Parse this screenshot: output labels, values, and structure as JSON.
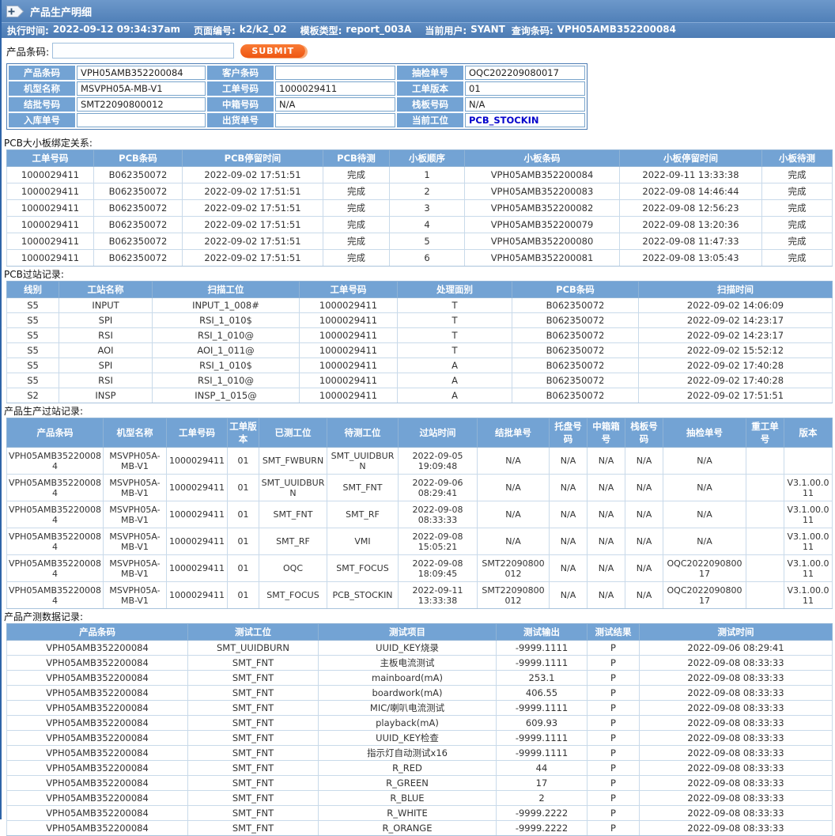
{
  "colors": {
    "accent_blue": "#5585BE",
    "header_blue": "#73A3D4",
    "button_orange": "#F4631E",
    "link_blue": "#0404CC"
  },
  "page": {
    "title": "产品生产明细",
    "meta": {
      "exec_time_label": "执行时间:",
      "exec_time": "2022-09-12 09:34:37am",
      "page_no_label": "页面编号:",
      "page_no": "k2/k2_02",
      "template_label": "模板类型:",
      "template": "report_003A",
      "user_label": "当前用户:",
      "user": "SYANT",
      "query_label": "查询条码:",
      "query": "VPH05AMB352200084"
    }
  },
  "form": {
    "barcode_label": "产品条码:",
    "barcode_value": "",
    "submit_label": "SUBMIT"
  },
  "info": {
    "rows": [
      [
        {
          "label": "产品条码",
          "value": "VPH05AMB352200084"
        },
        {
          "label": "客户条码",
          "value": ""
        },
        {
          "label": "抽检单号",
          "value": "OQC202209080017"
        }
      ],
      [
        {
          "label": "机型名称",
          "value": "MSVPH05A-MB-V1"
        },
        {
          "label": "工单号码",
          "value": "1000029411"
        },
        {
          "label": "工单版本",
          "value": "01"
        }
      ],
      [
        {
          "label": "结批号码",
          "value": "SMT22090800012"
        },
        {
          "label": "中箱号码",
          "value": "N/A"
        },
        {
          "label": "栈板号码",
          "value": "N/A"
        }
      ],
      [
        {
          "label": "入库单号",
          "value": ""
        },
        {
          "label": "出货单号",
          "value": ""
        },
        {
          "label": "当前工位",
          "value": "PCB_STOCKIN",
          "link": true
        }
      ]
    ]
  },
  "sections": {
    "binding": {
      "title": "PCB大小板绑定关系:",
      "headers": [
        "工单号码",
        "PCB条码",
        "PCB停留时间",
        "PCB待测",
        "小板顺序",
        "小板条码",
        "小板停留时间",
        "小板待测"
      ],
      "rows": [
        [
          "1000029411",
          "B062350072",
          "2022-09-02 17:51:51",
          "完成",
          "1",
          "VPH05AMB352200084",
          "2022-09-11 13:33:38",
          "完成"
        ],
        [
          "1000029411",
          "B062350072",
          "2022-09-02 17:51:51",
          "完成",
          "2",
          "VPH05AMB352200083",
          "2022-09-08 14:46:44",
          "完成"
        ],
        [
          "1000029411",
          "B062350072",
          "2022-09-02 17:51:51",
          "完成",
          "3",
          "VPH05AMB352200082",
          "2022-09-08 12:56:23",
          "完成"
        ],
        [
          "1000029411",
          "B062350072",
          "2022-09-02 17:51:51",
          "完成",
          "4",
          "VPH05AMB352200079",
          "2022-09-08 13:20:36",
          "完成"
        ],
        [
          "1000029411",
          "B062350072",
          "2022-09-02 17:51:51",
          "完成",
          "5",
          "VPH05AMB352200080",
          "2022-09-08 11:47:33",
          "完成"
        ],
        [
          "1000029411",
          "B062350072",
          "2022-09-02 17:51:51",
          "完成",
          "6",
          "VPH05AMB352200081",
          "2022-09-08 13:05:43",
          "完成"
        ]
      ]
    },
    "pcb_pass": {
      "title": "PCB过站记录:",
      "headers": [
        "线别",
        "工站名称",
        "扫描工位",
        "工单号码",
        "处理面别",
        "PCB条码",
        "扫描时间"
      ],
      "rows": [
        [
          "S5",
          "INPUT",
          "INPUT_1_008#",
          "1000029411",
          "T",
          "B062350072",
          "2022-09-02 14:06:09"
        ],
        [
          "S5",
          "SPI",
          "RSI_1_010$",
          "1000029411",
          "T",
          "B062350072",
          "2022-09-02 14:23:17"
        ],
        [
          "S5",
          "RSI",
          "RSI_1_010@",
          "1000029411",
          "T",
          "B062350072",
          "2022-09-02 14:23:17"
        ],
        [
          "S5",
          "AOI",
          "AOI_1_011@",
          "1000029411",
          "T",
          "B062350072",
          "2022-09-02 15:52:12"
        ],
        [
          "S5",
          "SPI",
          "RSI_1_010$",
          "1000029411",
          "A",
          "B062350072",
          "2022-09-02 17:40:28"
        ],
        [
          "S5",
          "RSI",
          "RSI_1_010@",
          "1000029411",
          "A",
          "B062350072",
          "2022-09-02 17:40:28"
        ],
        [
          "S2",
          "INSP",
          "INSP_1_015@",
          "1000029411",
          "A",
          "B062350072",
          "2022-09-02 17:51:51"
        ]
      ]
    },
    "production": {
      "title": "产品生产过站记录:",
      "headers": [
        "产品条码",
        "机型名称",
        "工单号码",
        "工单版本",
        "已测工位",
        "待测工位",
        "过站时间",
        "结批单号",
        "托盘号码",
        "中箱箱号",
        "栈板号码",
        "抽检单号",
        "重工单号",
        "版本"
      ],
      "rows": [
        [
          "VPH05AMB352200084",
          "MSVPH05A-MB-V1",
          "1000029411",
          "01",
          "SMT_FWBURN",
          "SMT_UUIDBURN",
          "2022-09-05 19:09:48",
          "N/A",
          "N/A",
          "N/A",
          "N/A",
          "N/A",
          "",
          ""
        ],
        [
          "VPH05AMB352200084",
          "MSVPH05A-MB-V1",
          "1000029411",
          "01",
          "SMT_UUIDBURN",
          "SMT_FNT",
          "2022-09-06 08:29:41",
          "N/A",
          "N/A",
          "N/A",
          "N/A",
          "N/A",
          "",
          "V3.1.00.011"
        ],
        [
          "VPH05AMB352200084",
          "MSVPH05A-MB-V1",
          "1000029411",
          "01",
          "SMT_FNT",
          "SMT_RF",
          "2022-09-08 08:33:33",
          "N/A",
          "N/A",
          "N/A",
          "N/A",
          "N/A",
          "",
          "V3.1.00.011"
        ],
        [
          "VPH05AMB352200084",
          "MSVPH05A-MB-V1",
          "1000029411",
          "01",
          "SMT_RF",
          "VMI",
          "2022-09-08 15:05:21",
          "N/A",
          "N/A",
          "N/A",
          "N/A",
          "N/A",
          "",
          "V3.1.00.011"
        ],
        [
          "VPH05AMB352200084",
          "MSVPH05A-MB-V1",
          "1000029411",
          "01",
          "OQC",
          "SMT_FOCUS",
          "2022-09-08 18:09:45",
          "SMT22090800012",
          "N/A",
          "N/A",
          "N/A",
          "OQC202209080017",
          "",
          "V3.1.00.011"
        ],
        [
          "VPH05AMB352200084",
          "MSVPH05A-MB-V1",
          "1000029411",
          "01",
          "SMT_FOCUS",
          "PCB_STOCKIN",
          "2022-09-11 13:33:38",
          "SMT22090800012",
          "N/A",
          "N/A",
          "N/A",
          "OQC202209080017",
          "",
          "V3.1.00.011"
        ]
      ]
    },
    "test": {
      "title": "产品产测数据记录:",
      "headers": [
        "产品条码",
        "测试工位",
        "测试项目",
        "测试输出",
        "测试结果",
        "测试时间"
      ],
      "rows": [
        [
          "VPH05AMB352200084",
          "SMT_UUIDBURN",
          "UUID_KEY烧录",
          "-9999.1111",
          "P",
          "2022-09-06 08:29:41"
        ],
        [
          "VPH05AMB352200084",
          "SMT_FNT",
          "主板电流测试",
          "-9999.1111",
          "P",
          "2022-09-08 08:33:33"
        ],
        [
          "VPH05AMB352200084",
          "SMT_FNT",
          "mainboard(mA)",
          "253.1",
          "P",
          "2022-09-08 08:33:33"
        ],
        [
          "VPH05AMB352200084",
          "SMT_FNT",
          "boardwork(mA)",
          "406.55",
          "P",
          "2022-09-08 08:33:33"
        ],
        [
          "VPH05AMB352200084",
          "SMT_FNT",
          "MIC/喇叭电流测试",
          "-9999.1111",
          "P",
          "2022-09-08 08:33:33"
        ],
        [
          "VPH05AMB352200084",
          "SMT_FNT",
          "playback(mA)",
          "609.93",
          "P",
          "2022-09-08 08:33:33"
        ],
        [
          "VPH05AMB352200084",
          "SMT_FNT",
          "UUID_KEY检查",
          "-9999.1111",
          "P",
          "2022-09-08 08:33:33"
        ],
        [
          "VPH05AMB352200084",
          "SMT_FNT",
          "指示灯自动测试x16",
          "-9999.1111",
          "P",
          "2022-09-08 08:33:33"
        ],
        [
          "VPH05AMB352200084",
          "SMT_FNT",
          "R_RED",
          "44",
          "P",
          "2022-09-08 08:33:33"
        ],
        [
          "VPH05AMB352200084",
          "SMT_FNT",
          "R_GREEN",
          "17",
          "P",
          "2022-09-08 08:33:33"
        ],
        [
          "VPH05AMB352200084",
          "SMT_FNT",
          "R_BLUE",
          "2",
          "P",
          "2022-09-08 08:33:33"
        ],
        [
          "VPH05AMB352200084",
          "SMT_FNT",
          "R_WHITE",
          "-9999.2222",
          "P",
          "2022-09-08 08:33:33"
        ],
        [
          "VPH05AMB352200084",
          "SMT_FNT",
          "R_ORANGE",
          "-9999.2222",
          "P",
          "2022-09-08 08:33:33"
        ]
      ]
    }
  }
}
